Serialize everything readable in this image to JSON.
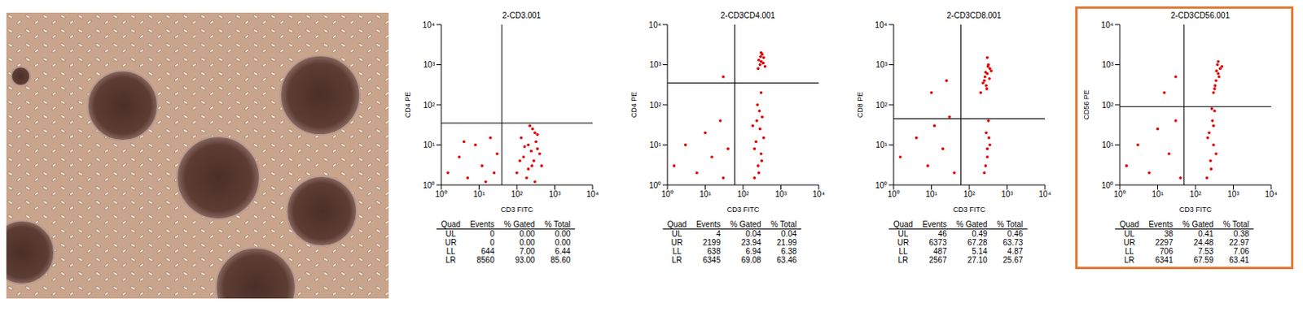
{
  "chart_data": [
    {
      "type": "scatter",
      "title": "2-CD3.001",
      "x_label": "CD3 FITC",
      "y_label": "CD4 PE",
      "color": "#e00000",
      "marker": "dot",
      "log": true,
      "xlim": [
        1,
        10000
      ],
      "ylim": [
        1,
        10000
      ],
      "xticks": [
        {
          "value": 1,
          "label": "10⁰"
        },
        {
          "value": 10,
          "label": "10¹"
        },
        {
          "value": 100,
          "label": "10²"
        },
        {
          "value": 1000,
          "label": "10³"
        },
        {
          "value": 10000,
          "label": "10⁴"
        }
      ],
      "yticks": [
        {
          "value": 1,
          "label": "10⁰"
        },
        {
          "value": 10,
          "label": "10¹"
        },
        {
          "value": 100,
          "label": "10²"
        },
        {
          "value": 1000,
          "label": "10³"
        },
        {
          "value": 10000,
          "label": "10⁴"
        }
      ],
      "gate_x": 40,
      "gate_y": 35,
      "x": [
        1.5,
        3,
        5,
        8,
        12,
        20,
        25,
        30,
        4,
        15,
        100,
        150,
        200,
        250,
        300,
        350,
        180,
        220,
        280,
        320,
        400,
        130,
        260,
        200,
        300,
        240,
        160,
        350,
        450,
        120
      ],
      "values": [
        2,
        5,
        1.5,
        10,
        3,
        15,
        2,
        6,
        12,
        1.2,
        2,
        5,
        10,
        3,
        20,
        8,
        1.5,
        30,
        4,
        12,
        6,
        15,
        25,
        2.5,
        1.2,
        7,
        9,
        18,
        3,
        4
      ],
      "table": {
        "columns": [
          "Quad",
          "Events",
          "% Gated",
          "% Total"
        ],
        "rows": [
          [
            "UL",
            0,
            "0.00",
            "0.00"
          ],
          [
            "UR",
            0,
            "0.00",
            "0.00"
          ],
          [
            "LL",
            644,
            "7.00",
            "6.44"
          ],
          [
            "LR",
            8560,
            "93.00",
            "85.60"
          ]
        ]
      }
    },
    {
      "type": "scatter",
      "title": "2-CD3CD4.001",
      "x_label": "CD3 FITC",
      "y_label": "CD4 PE",
      "color": "#e00000",
      "marker": "dot",
      "log": true,
      "xlim": [
        1,
        10000
      ],
      "ylim": [
        1,
        10000
      ],
      "xticks": [
        {
          "value": 1,
          "label": "10⁰"
        },
        {
          "value": 10,
          "label": "10¹"
        },
        {
          "value": 100,
          "label": "10²"
        },
        {
          "value": 1000,
          "label": "10³"
        },
        {
          "value": 10000,
          "label": "10⁴"
        }
      ],
      "yticks": [
        {
          "value": 1,
          "label": "10⁰"
        },
        {
          "value": 10,
          "label": "10¹"
        },
        {
          "value": 100,
          "label": "10²"
        },
        {
          "value": 1000,
          "label": "10³"
        },
        {
          "value": 10000,
          "label": "10⁴"
        }
      ],
      "gate_x": 60,
      "gate_y": 350,
      "x": [
        1.5,
        3,
        6,
        10,
        15,
        25,
        30,
        40,
        200,
        250,
        300,
        220,
        280,
        320,
        240,
        300,
        260,
        200,
        350,
        230,
        270,
        310,
        180,
        250,
        300,
        350,
        280,
        320,
        260,
        380,
        300,
        340,
        290,
        30
      ],
      "values": [
        3,
        10,
        2,
        20,
        5,
        40,
        1.5,
        8,
        1.5,
        3,
        6,
        12,
        25,
        50,
        100,
        200,
        2,
        8,
        15,
        40,
        70,
        4,
        30,
        800,
        1200,
        1500,
        1000,
        1800,
        1300,
        900,
        2000,
        1100,
        1600,
        500
      ],
      "table": {
        "columns": [
          "Quad",
          "Events",
          "% Gated",
          "% Total"
        ],
        "rows": [
          [
            "UL",
            4,
            "0.04",
            "0.04"
          ],
          [
            "UR",
            2199,
            "23.94",
            "21.99"
          ],
          [
            "LL",
            638,
            "6.94",
            "6.38"
          ],
          [
            "LR",
            6345,
            "69.08",
            "63.46"
          ]
        ]
      }
    },
    {
      "type": "scatter",
      "title": "2-CD3CD8.001",
      "x_label": "CD3 FITC",
      "y_label": "CD8 PE",
      "color": "#e00000",
      "marker": "dot",
      "log": true,
      "xlim": [
        1,
        10000
      ],
      "ylim": [
        1,
        10000
      ],
      "xticks": [
        {
          "value": 1,
          "label": "10⁰"
        },
        {
          "value": 10,
          "label": "10¹"
        },
        {
          "value": 100,
          "label": "10²"
        },
        {
          "value": 1000,
          "label": "10³"
        },
        {
          "value": 10000,
          "label": "10⁴"
        }
      ],
      "yticks": [
        {
          "value": 1,
          "label": "10⁰"
        },
        {
          "value": 10,
          "label": "10¹"
        },
        {
          "value": 100,
          "label": "10²"
        },
        {
          "value": 1000,
          "label": "10³"
        },
        {
          "value": 10000,
          "label": "10⁴"
        }
      ],
      "gate_x": 60,
      "gate_y": 45,
      "x": [
        1.5,
        4,
        8,
        12,
        20,
        30,
        40,
        250,
        300,
        350,
        280,
        320,
        270,
        330,
        300,
        200,
        250,
        300,
        350,
        280,
        320,
        260,
        380,
        300,
        230,
        340,
        290,
        310,
        270,
        10,
        25
      ],
      "values": [
        5,
        15,
        3,
        30,
        8,
        50,
        2,
        2,
        5,
        10,
        20,
        40,
        3,
        15,
        8,
        200,
        400,
        600,
        800,
        300,
        1000,
        500,
        700,
        1500,
        350,
        450,
        250,
        900,
        650,
        200,
        400
      ],
      "table": {
        "columns": [
          "Quad",
          "Events",
          "% Gated",
          "% Total"
        ],
        "rows": [
          [
            "UL",
            46,
            "0.49",
            "0.46"
          ],
          [
            "UR",
            6373,
            "67.28",
            "63.73"
          ],
          [
            "LL",
            487,
            "5.14",
            "4.87"
          ],
          [
            "LR",
            2567,
            "27.10",
            "25.67"
          ]
        ]
      }
    },
    {
      "type": "scatter",
      "title": "2-CD3CD56.001",
      "x_label": "CD3 FITC",
      "y_label": "CD56 PE",
      "color": "#e00000",
      "marker": "dot",
      "log": true,
      "xlim": [
        1,
        10000
      ],
      "ylim": [
        1,
        10000
      ],
      "xticks": [
        {
          "value": 1,
          "label": "10⁰"
        },
        {
          "value": 10,
          "label": "10¹"
        },
        {
          "value": 100,
          "label": "10²"
        },
        {
          "value": 1000,
          "label": "10³"
        },
        {
          "value": 10000,
          "label": "10⁴"
        }
      ],
      "yticks": [
        {
          "value": 1,
          "label": "10⁰"
        },
        {
          "value": 10,
          "label": "10¹"
        },
        {
          "value": 100,
          "label": "10²"
        },
        {
          "value": 1000,
          "label": "10³"
        },
        {
          "value": 10000,
          "label": "10⁴"
        }
      ],
      "gate_x": 50,
      "gate_y": 90,
      "x": [
        1.5,
        3,
        6,
        10,
        20,
        30,
        40,
        200,
        250,
        300,
        230,
        280,
        320,
        260,
        350,
        210,
        300,
        270,
        300,
        350,
        400,
        450,
        380,
        420,
        330,
        360,
        500,
        400,
        320,
        15,
        30
      ],
      "values": [
        3,
        10,
        2,
        25,
        6,
        40,
        1.5,
        1.5,
        4,
        10,
        20,
        40,
        70,
        2.5,
        6,
        15,
        30,
        80,
        200,
        400,
        600,
        800,
        1000,
        500,
        300,
        700,
        900,
        1200,
        250,
        200,
        500
      ],
      "table": {
        "columns": [
          "Quad",
          "Events",
          "% Gated",
          "% Total"
        ],
        "rows": [
          [
            "UL",
            38,
            "0.41",
            "0.38"
          ],
          [
            "UR",
            2297,
            "24.48",
            "22.97"
          ],
          [
            "LL",
            706,
            "7.53",
            "7.06"
          ],
          [
            "LR",
            6341,
            "67.59",
            "63.41"
          ]
        ]
      }
    }
  ]
}
